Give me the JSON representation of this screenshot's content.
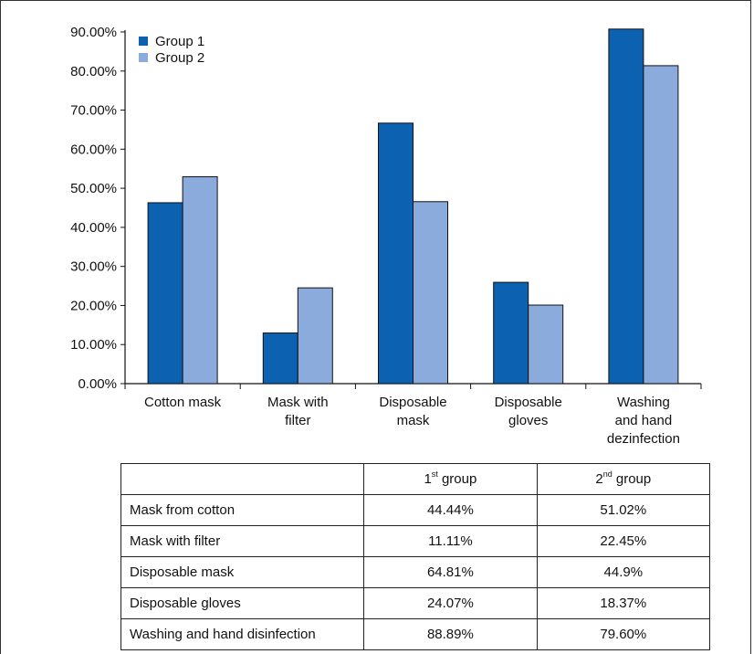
{
  "chart_data": {
    "type": "bar",
    "categories": [
      [
        "Cotton mask"
      ],
      [
        "Mask with",
        "filter"
      ],
      [
        "Disposable",
        "mask"
      ],
      [
        "Disposable",
        "gloves"
      ],
      [
        "Washing",
        "and hand",
        "dezinfection"
      ]
    ],
    "series": [
      {
        "name": "Group 1",
        "color": "#0c62b0",
        "values": [
          46.3,
          12.96,
          66.67,
          25.93,
          90.74
        ]
      },
      {
        "name": "Group 2",
        "color": "#8aabdb",
        "values": [
          52.94,
          24.51,
          46.57,
          20.1,
          81.37
        ]
      }
    ],
    "yticks": [
      "0.00%",
      "10.00%",
      "20.00%",
      "30.00%",
      "40.00%",
      "50.00%",
      "60.00%",
      "70.00%",
      "80.00%",
      "90.00%"
    ],
    "ylim": [
      0,
      90
    ],
    "legend_position": "top-left",
    "grid": false
  },
  "table": {
    "header": {
      "col1": {
        "main": "1",
        "sup": "st",
        "rest": " group"
      },
      "col2": {
        "main": "2",
        "sup": "nd",
        "rest": " group"
      }
    },
    "rows": [
      {
        "label": "Mask from cotton",
        "g1": "44.44%",
        "g2": "51.02%"
      },
      {
        "label": "Mask with filter",
        "g1": "11.11%",
        "g2": "22.45%"
      },
      {
        "label": "Disposable mask",
        "g1": "64.81%",
        "g2": "44.9%"
      },
      {
        "label": "Disposable gloves",
        "g1": "24.07%",
        "g2": "18.37%"
      },
      {
        "label": "Washing and hand disinfection",
        "g1": "88.89%",
        "g2": "79.60%"
      }
    ]
  }
}
